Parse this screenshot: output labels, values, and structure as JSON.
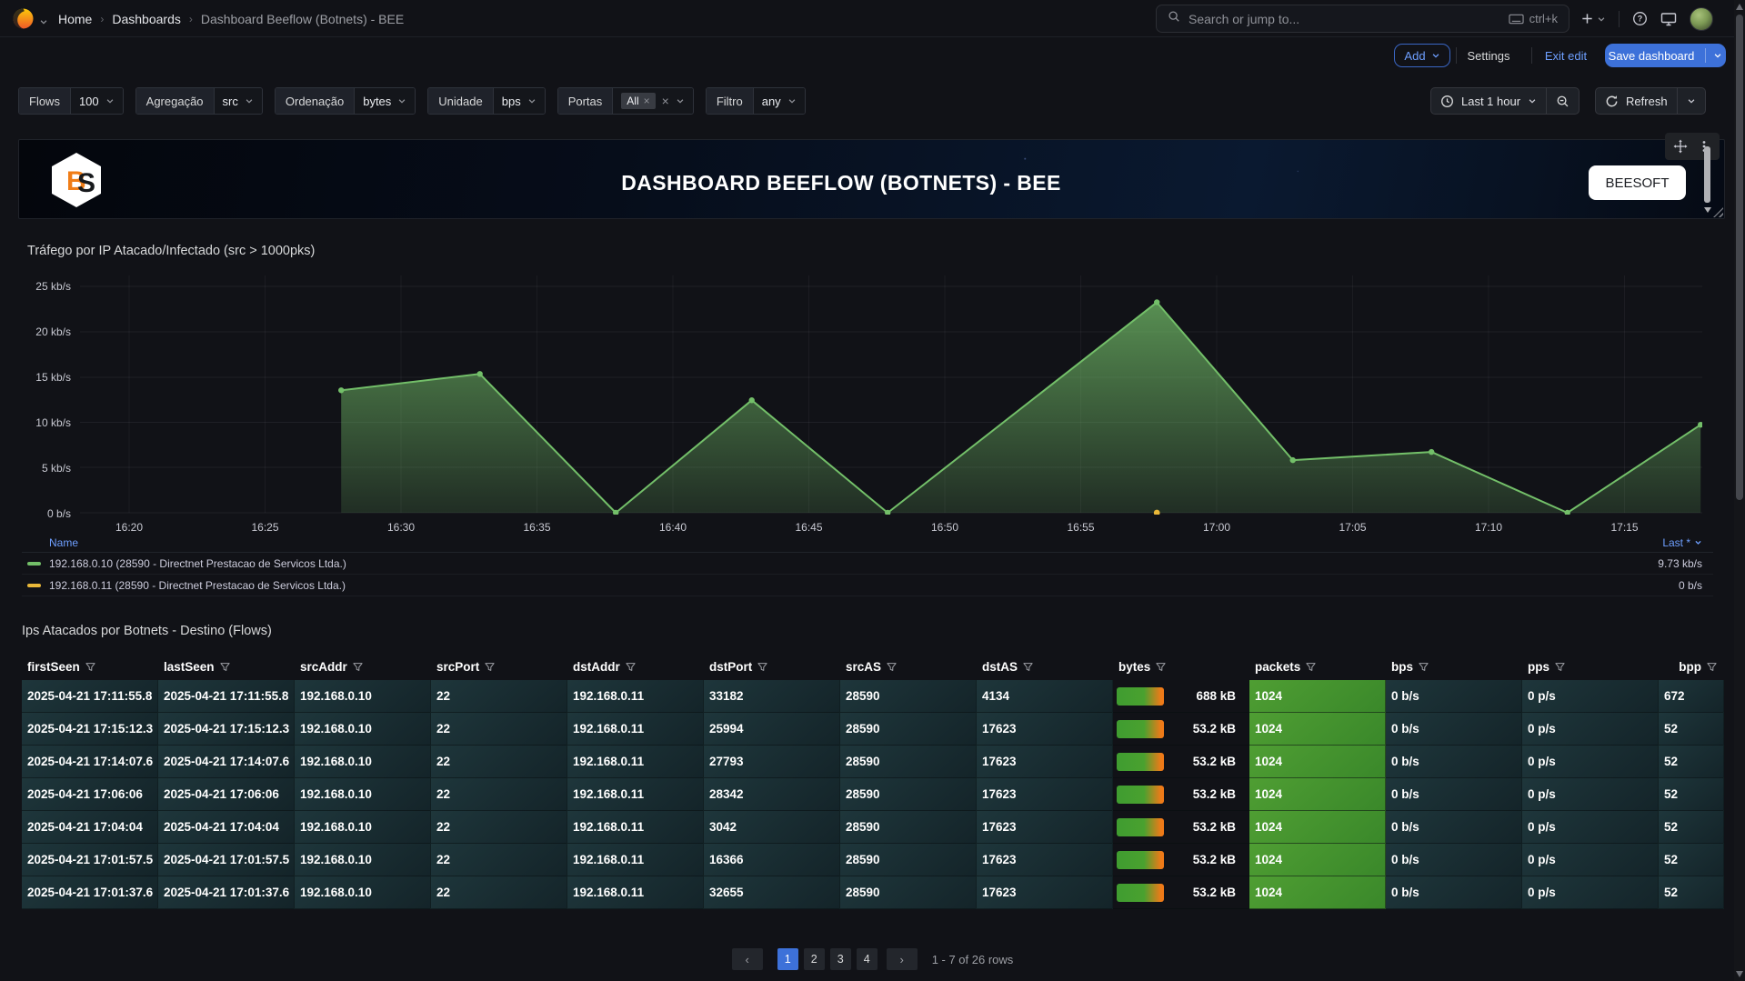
{
  "nav": {
    "breadcrumbs": [
      "Home",
      "Dashboards",
      "Dashboard Beeflow (Botnets) - BEE"
    ],
    "search_placeholder": "Search or jump to...",
    "search_shortcut": "ctrl+k"
  },
  "toolbar": {
    "add": "Add",
    "settings": "Settings",
    "exit_edit": "Exit edit",
    "save": "Save dashboard"
  },
  "filters": [
    {
      "label": "Flows",
      "value": "100",
      "chip": false
    },
    {
      "label": "Agregação",
      "value": "src",
      "chip": false
    },
    {
      "label": "Ordenação",
      "value": "bytes",
      "chip": false
    },
    {
      "label": "Unidade",
      "value": "bps",
      "chip": false
    },
    {
      "label": "Portas",
      "value": "All",
      "chip": true
    },
    {
      "label": "Filtro",
      "value": "any",
      "chip": false
    }
  ],
  "time": {
    "range": "Last 1 hour",
    "refresh": "Refresh"
  },
  "header_panel": {
    "title": "DASHBOARD BEEFLOW (BOTNETS) - BEE",
    "brand": "BEESOFT",
    "logo_letters": "BS"
  },
  "colors": {
    "accent_blue": "#3d71d9",
    "link_blue": "#6e9fff",
    "series_green": "#73BF69",
    "series_yellow": "#EAB839",
    "gauge_orange": "#ef7a18",
    "cell_green": "#4f9e33",
    "cell_teal": "#1e363b"
  },
  "chart_data": {
    "type": "area",
    "title": "Tráfego por IP Atacado/Infectado (src > 1000pks)",
    "ylabel": "",
    "xlabel": "",
    "ylim": [
      0,
      25
    ],
    "y_unit": "kb/s",
    "grid": true,
    "y_ticks": [
      "25 kb/s",
      "20 kb/s",
      "15 kb/s",
      "10 kb/s",
      "5 kb/s",
      "0 b/s"
    ],
    "x_ticks": [
      "16:20",
      "16:25",
      "16:30",
      "16:35",
      "16:40",
      "16:45",
      "16:50",
      "16:55",
      "17:00",
      "17:05",
      "17:10",
      "17:15"
    ],
    "series": [
      {
        "name": "192.168.0.10 (28590 - Directnet Prestacao de Servicos Ltda.)",
        "color": "#73BF69",
        "points": [
          [
            "16:27.8",
            13.5
          ],
          [
            "16:32.9",
            15.3
          ],
          [
            "16:37.9",
            0
          ],
          [
            "16:42.9",
            12.4
          ],
          [
            "16:47.9",
            0
          ],
          [
            "16:57.8",
            23.2
          ],
          [
            "17:02.8",
            5.8
          ],
          [
            "17:07.9",
            6.7
          ],
          [
            "17:12.9",
            0
          ],
          [
            "17:17.8",
            9.7
          ]
        ]
      },
      {
        "name": "192.168.0.11 (28590 - Directnet Prestacao de Servicos Ltda.)",
        "color": "#EAB839",
        "points": [
          [
            "16:57.8",
            0
          ]
        ]
      }
    ],
    "legend": {
      "name_header": "Name",
      "value_header": "Last *",
      "values": [
        "9.73 kb/s",
        "0 b/s"
      ]
    }
  },
  "table_panel": {
    "title": "Ips Atacados por Botnets - Destino (Flows)",
    "columns": [
      "firstSeen",
      "lastSeen",
      "srcAddr",
      "srcPort",
      "dstAddr",
      "dstPort",
      "srcAS",
      "dstAS",
      "bytes",
      "packets",
      "bps",
      "pps",
      "bpp"
    ],
    "rows": [
      {
        "firstSeen": "2025-04-21 17:11:55.8",
        "lastSeen": "2025-04-21 17:11:55.8",
        "srcAddr": "192.168.0.10",
        "srcPort": "22",
        "dstAddr": "192.168.0.11",
        "dstPort": "33182",
        "srcAS": "28590",
        "dstAS": "4134",
        "bytes": "688 kB",
        "packets": "1024",
        "bps": "0 b/s",
        "pps": "0 p/s",
        "bpp": "672"
      },
      {
        "firstSeen": "2025-04-21 17:15:12.3",
        "lastSeen": "2025-04-21 17:15:12.3",
        "srcAddr": "192.168.0.10",
        "srcPort": "22",
        "dstAddr": "192.168.0.11",
        "dstPort": "25994",
        "srcAS": "28590",
        "dstAS": "17623",
        "bytes": "53.2 kB",
        "packets": "1024",
        "bps": "0 b/s",
        "pps": "0 p/s",
        "bpp": "52"
      },
      {
        "firstSeen": "2025-04-21 17:14:07.6",
        "lastSeen": "2025-04-21 17:14:07.6",
        "srcAddr": "192.168.0.10",
        "srcPort": "22",
        "dstAddr": "192.168.0.11",
        "dstPort": "27793",
        "srcAS": "28590",
        "dstAS": "17623",
        "bytes": "53.2 kB",
        "packets": "1024",
        "bps": "0 b/s",
        "pps": "0 p/s",
        "bpp": "52"
      },
      {
        "firstSeen": "2025-04-21 17:06:06",
        "lastSeen": "2025-04-21 17:06:06",
        "srcAddr": "192.168.0.10",
        "srcPort": "22",
        "dstAddr": "192.168.0.11",
        "dstPort": "28342",
        "srcAS": "28590",
        "dstAS": "17623",
        "bytes": "53.2 kB",
        "packets": "1024",
        "bps": "0 b/s",
        "pps": "0 p/s",
        "bpp": "52"
      },
      {
        "firstSeen": "2025-04-21 17:04:04",
        "lastSeen": "2025-04-21 17:04:04",
        "srcAddr": "192.168.0.10",
        "srcPort": "22",
        "dstAddr": "192.168.0.11",
        "dstPort": "3042",
        "srcAS": "28590",
        "dstAS": "17623",
        "bytes": "53.2 kB",
        "packets": "1024",
        "bps": "0 b/s",
        "pps": "0 p/s",
        "bpp": "52"
      },
      {
        "firstSeen": "2025-04-21 17:01:57.5",
        "lastSeen": "2025-04-21 17:01:57.5",
        "srcAddr": "192.168.0.10",
        "srcPort": "22",
        "dstAddr": "192.168.0.11",
        "dstPort": "16366",
        "srcAS": "28590",
        "dstAS": "17623",
        "bytes": "53.2 kB",
        "packets": "1024",
        "bps": "0 b/s",
        "pps": "0 p/s",
        "bpp": "52"
      },
      {
        "firstSeen": "2025-04-21 17:01:37.6",
        "lastSeen": "2025-04-21 17:01:37.6",
        "srcAddr": "192.168.0.10",
        "srcPort": "22",
        "dstAddr": "192.168.0.11",
        "dstPort": "32655",
        "srcAS": "28590",
        "dstAS": "17623",
        "bytes": "53.2 kB",
        "packets": "1024",
        "bps": "0 b/s",
        "pps": "0 p/s",
        "bpp": "52"
      }
    ]
  },
  "pagination": {
    "prev": "‹",
    "next": "›",
    "pages": [
      "1",
      "2",
      "3",
      "4"
    ],
    "active": "1",
    "summary": "1 - 7 of 26 rows"
  }
}
